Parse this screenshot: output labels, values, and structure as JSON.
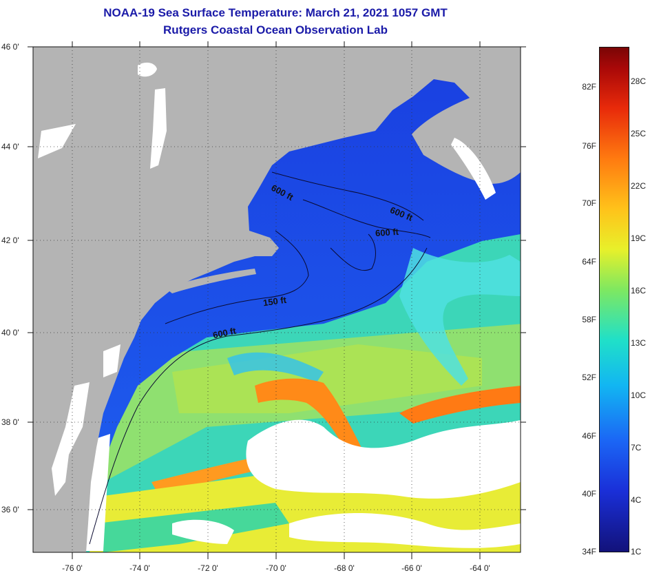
{
  "header": {
    "title": "NOAA-19 Sea Surface Temperature:  March 21, 2021 1057 GMT",
    "subtitle": "Rutgers Coastal Ocean Observation Lab"
  },
  "map": {
    "lat_labels": [
      "46 0'",
      "44 0'",
      "42 0'",
      "40 0'",
      "38 0'",
      "36 0'"
    ],
    "lon_labels": [
      "-76 0'",
      "-74 0'",
      "-72 0'",
      "-70 0'",
      "-68 0'",
      "-66 0'",
      "-64 0'"
    ],
    "contour_labels": [
      "600 ft",
      "600 ft",
      "600 ft",
      "150 ft",
      "600 ft"
    ],
    "colors": {
      "land": "#b4b4b4",
      "cloud": "#ffffff",
      "cold_water": "#1a3fe0",
      "warm_water": "#ff8a18"
    }
  },
  "colorbar": {
    "fahrenheit_labels": [
      "82F",
      "76F",
      "70F",
      "64F",
      "58F",
      "52F",
      "46F",
      "40F",
      "34F"
    ],
    "celsius_labels": [
      "28C",
      "25C",
      "22C",
      "19C",
      "16C",
      "13C",
      "10C",
      "7C",
      "4C",
      "1C"
    ]
  }
}
